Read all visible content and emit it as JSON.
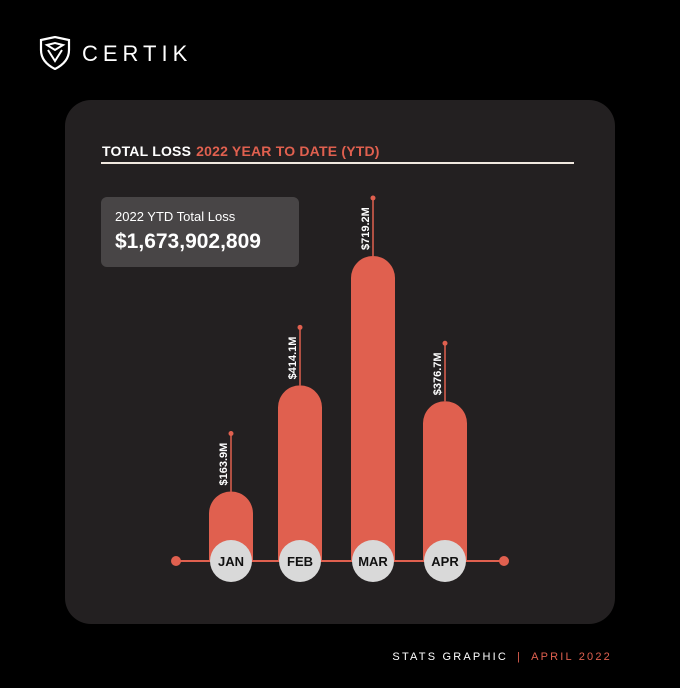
{
  "brand": {
    "name": "CERTIK",
    "logo_icon": "certik-shield-icon"
  },
  "header": {
    "title": "TOTAL LOSS",
    "subtitle": "2022 YEAR TO DATE (YTD)"
  },
  "summary": {
    "label": "2022 YTD Total Loss",
    "value": "$1,673,902,809"
  },
  "footer": {
    "left": "STATS GRAPHIC",
    "separator": "|",
    "right": "APRIL 2022"
  },
  "colors": {
    "background": "#000000",
    "card": "#232021",
    "accent": "#e0604f",
    "month_circle": "#d9d9d9"
  },
  "chart_data": {
    "type": "bar",
    "title": "",
    "categories": [
      "JAN",
      "FEB",
      "MAR",
      "APR"
    ],
    "values": [
      163.9,
      414.1,
      719.2,
      376.7
    ],
    "value_labels": [
      "$163.9M",
      "$414.1M",
      "$719.2M",
      "$376.7M"
    ],
    "unit": "USD millions",
    "xlabel": "",
    "ylabel": "",
    "grid": false,
    "legend": "none"
  }
}
